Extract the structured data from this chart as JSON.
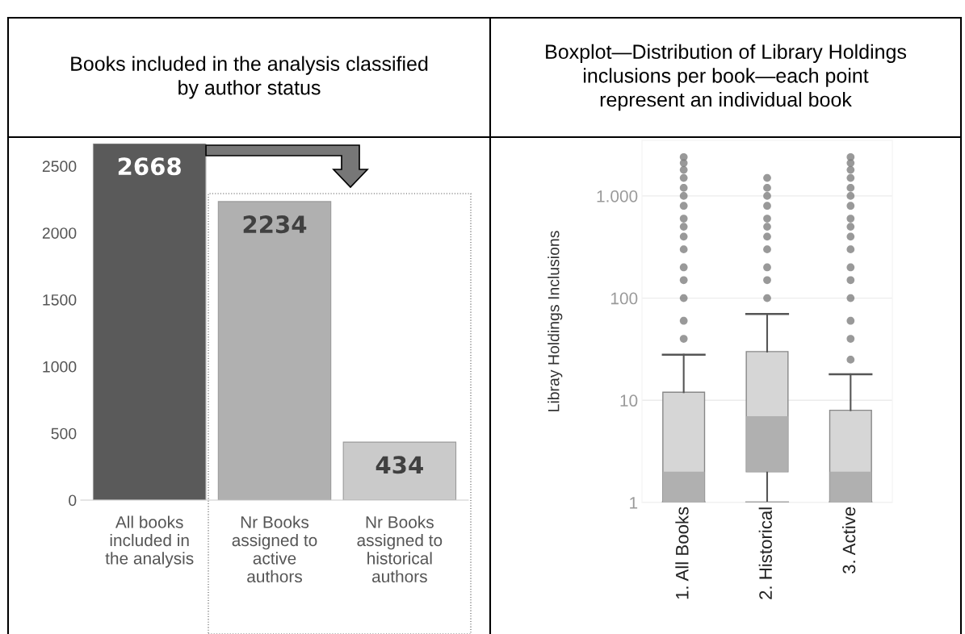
{
  "chart_data": [
    {
      "type": "bar",
      "title": "Books included in the analysis classified\nby author status",
      "categories": [
        "All books\nincluded in\nthe analysis",
        "Nr Books\nassigned to\nactive\nauthors",
        "Nr Books\nassigned to\nhistorical\nauthors"
      ],
      "values": [
        2668,
        2234,
        434
      ],
      "colors": [
        "#5a5a5a",
        "#b0b0b0",
        "#cacaca"
      ],
      "ylim": [
        0,
        2668
      ],
      "yticks": [
        0,
        500,
        1000,
        1500,
        2000,
        2500
      ],
      "data_labels": true,
      "grid": false
    },
    {
      "type": "box",
      "title": "Boxplot—Distribution of Library Holdings\ninclusions per book—each point\nrepresent an individual book",
      "ylabel": "Libray Holdings Inclusions",
      "categories": [
        "1. All Books",
        "2. Historical",
        "3. Active"
      ],
      "colors": [
        "#b0b0b0",
        "#b0b0b0",
        "#b0b0b0"
      ],
      "log": true,
      "ylim": [
        1,
        3500
      ],
      "yticks": [
        1,
        10,
        100,
        {
          "value": 1000,
          "label": "1.000"
        }
      ],
      "grid": "y",
      "series": [
        {
          "color": "#d6d6d6",
          "boxes": [
            {
              "low": 1,
              "q1": 1,
              "median": 2,
              "q3": 12,
              "high": 28,
              "outliers": [
                40,
                60,
                100,
                150,
                200,
                300,
                400,
                500,
                600,
                800,
                1000,
                1200,
                1500,
                1800,
                2100,
                2400
              ]
            },
            {
              "low": 1,
              "q1": 2,
              "median": 7,
              "q3": 30,
              "high": 70,
              "outliers": [
                100,
                150,
                200,
                300,
                400,
                500,
                600,
                800,
                1000,
                1200,
                1500
              ]
            },
            {
              "low": 1,
              "q1": 1,
              "median": 2,
              "q3": 8,
              "high": 18,
              "outliers": [
                25,
                40,
                60,
                100,
                150,
                200,
                300,
                400,
                500,
                600,
                800,
                1000,
                1200,
                1500,
                1800,
                2100,
                2400
              ]
            }
          ]
        }
      ]
    }
  ]
}
